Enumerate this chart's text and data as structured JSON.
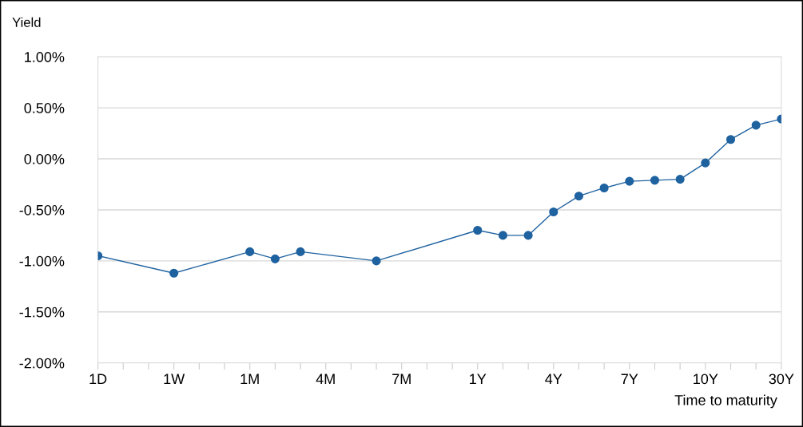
{
  "chart_data": {
    "type": "line",
    "ylabel": "Yield",
    "xlabel": "Time to maturity",
    "categories": [
      "1D",
      null,
      null,
      "1W",
      null,
      null,
      "1M",
      null,
      null,
      "4M",
      null,
      null,
      "7M",
      null,
      null,
      "1Y",
      null,
      null,
      "4Y",
      null,
      null,
      "7Y",
      null,
      null,
      "10Y",
      null,
      null,
      "30Y"
    ],
    "series": [
      {
        "color": "#1f62a0",
        "values": [
          -0.95,
          null,
          null,
          -1.12,
          null,
          null,
          -0.91,
          -0.98,
          -0.91,
          null,
          null,
          -1.0,
          null,
          null,
          null,
          -0.7,
          -0.75,
          -0.75,
          -0.52,
          -0.365,
          -0.285,
          -0.22,
          -0.21,
          -0.2,
          -0.04,
          0.19,
          0.33,
          0.39
        ]
      }
    ],
    "ylim": [
      -2,
      1
    ],
    "yticks": [
      {
        "value": -2,
        "label": "-2.00%"
      },
      {
        "value": -1.5,
        "label": "-1.50%"
      },
      {
        "value": -1,
        "label": "-1.00%"
      },
      {
        "value": -0.5,
        "label": "-0.50%"
      },
      {
        "value": 0,
        "label": "0.00%"
      },
      {
        "value": 0.5,
        "label": "0.50%"
      },
      {
        "value": 1,
        "label": "1.00%"
      }
    ],
    "grid": "y",
    "marker": "circle",
    "line_style": "solid"
  }
}
